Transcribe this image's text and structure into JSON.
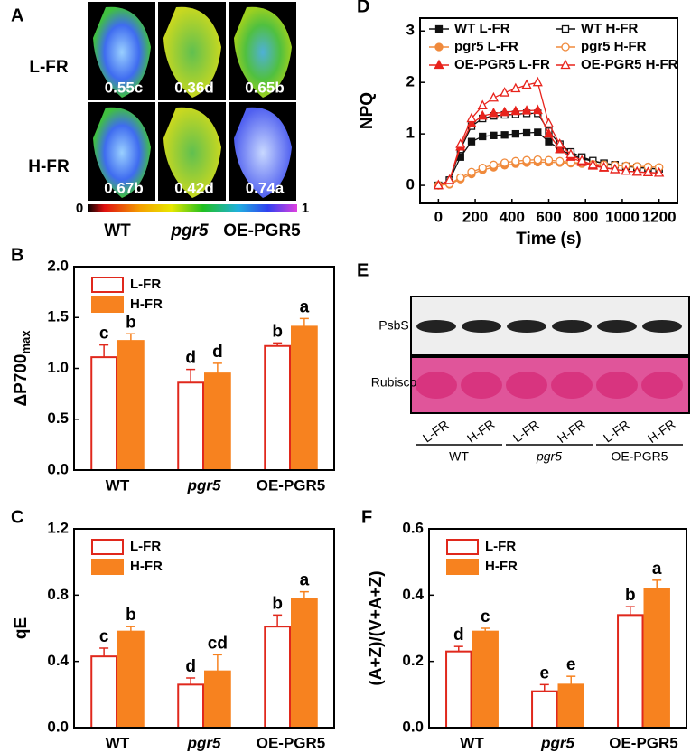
{
  "panel_a": {
    "label": "A",
    "rows": [
      "L-FR",
      "H-FR"
    ],
    "columns": [
      "WT",
      "pgr5",
      "OE-PGR5"
    ],
    "values": [
      [
        "0.55c",
        "0.36d",
        "0.65b"
      ],
      [
        "0.67b",
        "0.42d",
        "0.74a"
      ]
    ],
    "colorbar": [
      0,
      1
    ]
  },
  "panel_e": {
    "label": "E",
    "bands": [
      "PsbS",
      "Rubisco"
    ],
    "lanes": [
      "L-FR",
      "H-FR",
      "L-FR",
      "H-FR",
      "L-FR",
      "H-FR"
    ],
    "groups": [
      "WT",
      "pgr5",
      "OE-PGR5"
    ]
  },
  "chart_data": [
    {
      "type": "bar",
      "panel_label": "B",
      "ylabel": "ΔP700",
      "ylabel_sub": "max",
      "categories": [
        "WT",
        "pgr5",
        "OE-PGR5"
      ],
      "ylim": [
        0,
        2.0
      ],
      "yticks": [
        {
          "value": 0,
          "label": "0.0"
        },
        0.5,
        {
          "value": 1,
          "label": "1.0"
        },
        1.5,
        {
          "value": 2,
          "label": "2.0"
        }
      ],
      "series": [
        {
          "name": "L-FR",
          "color": "#e0281c",
          "style": "outline",
          "values": [
            1.11,
            0.86,
            1.22
          ],
          "errors": [
            0.12,
            0.13,
            0.03
          ],
          "letters": [
            "c",
            "d",
            "b"
          ]
        },
        {
          "name": "H-FR",
          "color": "#f7821f",
          "style": "filled",
          "values": [
            1.27,
            0.95,
            1.41
          ],
          "errors": [
            0.07,
            0.1,
            0.08
          ],
          "letters": [
            "b",
            "d",
            "a"
          ]
        }
      ]
    },
    {
      "type": "bar",
      "panel_label": "C",
      "ylabel": "qE",
      "categories": [
        "WT",
        "pgr5",
        "OE-PGR5"
      ],
      "ylim": [
        0,
        1.2
      ],
      "yticks": [
        {
          "value": 0,
          "label": "0.0"
        },
        0.4,
        0.8,
        1.2
      ],
      "series": [
        {
          "name": "L-FR",
          "color": "#e0281c",
          "style": "outline",
          "values": [
            0.43,
            0.26,
            0.61
          ],
          "errors": [
            0.05,
            0.04,
            0.07
          ],
          "letters": [
            "c",
            "d",
            "b"
          ]
        },
        {
          "name": "H-FR",
          "color": "#f7821f",
          "style": "filled",
          "values": [
            0.58,
            0.34,
            0.78
          ],
          "errors": [
            0.03,
            0.1,
            0.04
          ],
          "letters": [
            "b",
            "cd",
            "a"
          ]
        }
      ]
    },
    {
      "type": "line",
      "panel_label": "D",
      "ylabel": "NPQ",
      "xlabel": "Time (s)",
      "x": [
        0,
        60,
        120,
        180,
        240,
        300,
        360,
        420,
        480,
        540,
        600,
        660,
        720,
        780,
        840,
        900,
        960,
        1020,
        1080,
        1140,
        1200
      ],
      "xlim": [
        -100,
        1300
      ],
      "xticks": [
        0,
        200,
        400,
        600,
        800,
        1000,
        1200
      ],
      "ylim": [
        -0.35,
        3.25
      ],
      "yticks": [
        0,
        1,
        2,
        3
      ],
      "series": [
        {
          "name": "WT L-FR",
          "color": "#111111",
          "marker": "square",
          "filled": true,
          "values": [
            0,
            0.1,
            0.55,
            0.85,
            0.95,
            0.97,
            0.98,
            1.0,
            1.02,
            1.03,
            0.85,
            0.7,
            0.6,
            0.52,
            0.47,
            0.43,
            0.4,
            0.37,
            0.35,
            0.33,
            0.32
          ]
        },
        {
          "name": "WT H-FR",
          "color": "#111111",
          "marker": "square",
          "filled": false,
          "values": [
            0,
            0.1,
            0.7,
            1.15,
            1.3,
            1.35,
            1.37,
            1.38,
            1.4,
            1.4,
            1.05,
            0.8,
            0.65,
            0.55,
            0.48,
            0.43,
            0.4,
            0.37,
            0.35,
            0.33,
            0.32
          ]
        },
        {
          "name": "pgr5 L-FR",
          "color": "#f08a3c",
          "marker": "circle",
          "filled": true,
          "values": [
            0,
            0.02,
            0.12,
            0.22,
            0.3,
            0.35,
            0.39,
            0.42,
            0.44,
            0.45,
            0.45,
            0.44,
            0.43,
            0.42,
            0.41,
            0.4,
            0.39,
            0.38,
            0.37,
            0.36,
            0.35
          ]
        },
        {
          "name": "pgr5 H-FR",
          "color": "#f08a3c",
          "marker": "circle",
          "filled": false,
          "values": [
            0,
            0.03,
            0.15,
            0.26,
            0.34,
            0.4,
            0.44,
            0.47,
            0.49,
            0.5,
            0.49,
            0.47,
            0.45,
            0.43,
            0.41,
            0.4,
            0.39,
            0.38,
            0.37,
            0.36,
            0.35
          ]
        },
        {
          "name": "OE-PGR5 L-FR",
          "color": "#e8231c",
          "marker": "triangle",
          "filled": true,
          "values": [
            0,
            0.1,
            0.75,
            1.2,
            1.35,
            1.4,
            1.42,
            1.44,
            1.45,
            1.46,
            1.0,
            0.7,
            0.55,
            0.45,
            0.38,
            0.34,
            0.31,
            0.28,
            0.26,
            0.25,
            0.24
          ]
        },
        {
          "name": "OE-PGR5 H-FR",
          "color": "#e8231c",
          "marker": "triangle",
          "filled": false,
          "values": [
            0,
            0.1,
            0.8,
            1.3,
            1.55,
            1.7,
            1.8,
            1.88,
            1.95,
            2.0,
            1.2,
            0.8,
            0.6,
            0.48,
            0.4,
            0.35,
            0.31,
            0.28,
            0.26,
            0.25,
            0.24
          ]
        }
      ]
    },
    {
      "type": "bar",
      "panel_label": "F",
      "ylabel": "(A+Z)/(V+A+Z)",
      "categories": [
        "WT",
        "pgr5",
        "OE-PGR5"
      ],
      "ylim": [
        0,
        0.6
      ],
      "yticks": [
        {
          "value": 0,
          "label": "0.0"
        },
        0.2,
        0.4,
        0.6
      ],
      "series": [
        {
          "name": "L-FR",
          "color": "#e0281c",
          "style": "outline",
          "values": [
            0.23,
            0.11,
            0.34
          ],
          "errors": [
            0.015,
            0.02,
            0.025
          ],
          "letters": [
            "d",
            "e",
            "b"
          ]
        },
        {
          "name": "H-FR",
          "color": "#f7821f",
          "style": "filled",
          "values": [
            0.29,
            0.13,
            0.42
          ],
          "errors": [
            0.01,
            0.025,
            0.025
          ],
          "letters": [
            "c",
            "e",
            "a"
          ]
        }
      ]
    }
  ]
}
